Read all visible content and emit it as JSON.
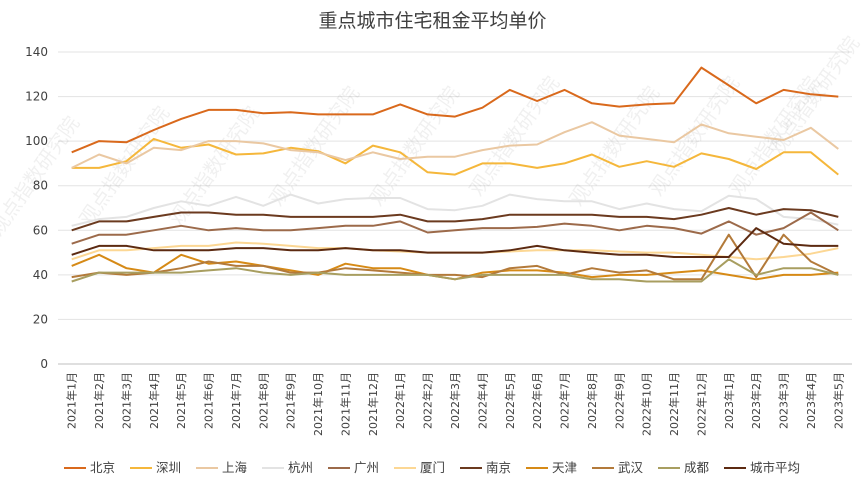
{
  "chart_data": {
    "type": "line",
    "title": "重点城市住宅租金平均单价",
    "xlabel": "",
    "ylabel": "",
    "ylim": [
      0,
      140
    ],
    "yticks": [
      0,
      20,
      40,
      60,
      80,
      100,
      120,
      140
    ],
    "grid": true,
    "legend_position": "bottom",
    "categories": [
      "2021年1月",
      "2021年2月",
      "2021年3月",
      "2021年4月",
      "2021年5月",
      "2021年6月",
      "2021年7月",
      "2021年8月",
      "2021年9月",
      "2021年10月",
      "2021年11月",
      "2021年12月",
      "2022年1月",
      "2022年2月",
      "2022年3月",
      "2022年4月",
      "2022年5月",
      "2022年6月",
      "2022年7月",
      "2022年8月",
      "2022年9月",
      "2022年10月",
      "2022年11月",
      "2022年12月",
      "2023年1月",
      "2023年2月",
      "2023年3月",
      "2023年4月",
      "2023年5月"
    ],
    "series": [
      {
        "name": "北京",
        "color": "#D9691C",
        "values": [
          95,
          100,
          99.5,
          105,
          110,
          114,
          114,
          112.5,
          113,
          112,
          112,
          112,
          116.5,
          112,
          111,
          115,
          123,
          118,
          123,
          117,
          115.5,
          116.5,
          117,
          133,
          125,
          117,
          123,
          121,
          120
        ]
      },
      {
        "name": "深圳",
        "color": "#F5B73B",
        "values": [
          88,
          88,
          91,
          101,
          97,
          98.5,
          94,
          94.5,
          97,
          95.5,
          90,
          98,
          95,
          86,
          85,
          90,
          90,
          88,
          90,
          94,
          88.5,
          91,
          88.5,
          94.5,
          92,
          87.5,
          95,
          95,
          85
        ]
      },
      {
        "name": "上海",
        "color": "#EAC8A2",
        "values": [
          88,
          94,
          90,
          97,
          96,
          100,
          100,
          99,
          96,
          95,
          91.5,
          95,
          92,
          93,
          93,
          96,
          98,
          98.5,
          104,
          108.5,
          102.5,
          101,
          99.5,
          107.5,
          103.5,
          102,
          100.5,
          106,
          96.5
        ]
      },
      {
        "name": "杭州",
        "color": "#E3E3E3",
        "values": [
          62,
          65,
          66,
          70,
          73,
          71,
          75,
          71,
          76,
          72,
          74,
          74.5,
          74.5,
          69.5,
          69,
          71,
          76,
          74,
          73,
          73,
          69.5,
          72,
          69.5,
          68.5,
          75.5,
          74,
          66,
          65,
          62.5
        ]
      },
      {
        "name": "广州",
        "color": "#9C6A4A",
        "values": [
          54,
          58,
          58,
          60,
          62,
          60,
          61,
          60,
          60,
          61,
          62,
          62,
          64,
          59,
          60,
          61,
          61,
          61.5,
          63,
          62,
          60,
          62,
          61,
          58.5,
          64,
          58,
          61,
          68,
          60
        ]
      },
      {
        "name": "厦门",
        "color": "#FCD794",
        "values": [
          47,
          51,
          51,
          52,
          53,
          53,
          54.5,
          54,
          53,
          52,
          52,
          51,
          50.5,
          50,
          50,
          50,
          50.5,
          51,
          51,
          51,
          50.5,
          50,
          50,
          49,
          48,
          47,
          48,
          49.5,
          52
        ]
      },
      {
        "name": "南京",
        "color": "#6B3A1F",
        "values": [
          60,
          64,
          64,
          66,
          68,
          68,
          67,
          67,
          66,
          66,
          66,
          66,
          67,
          64,
          64,
          65,
          67,
          67,
          67,
          67,
          66,
          66,
          65,
          67,
          70,
          67,
          69.5,
          69,
          66
        ]
      },
      {
        "name": "天津",
        "color": "#D68A16",
        "values": [
          44,
          49,
          43,
          41,
          49,
          45,
          46,
          44,
          42,
          40,
          45,
          43,
          43,
          40,
          38,
          41,
          42,
          42,
          41,
          39,
          40,
          40,
          41,
          42,
          40,
          38,
          40,
          40,
          41
        ]
      },
      {
        "name": "武汉",
        "color": "#B37A3A",
        "values": [
          39,
          41,
          40,
          41,
          43,
          46,
          44,
          44,
          41,
          41,
          43,
          42,
          41,
          40,
          40,
          39,
          43,
          44,
          40,
          43,
          41,
          42,
          38,
          38,
          58,
          39,
          58,
          46,
          40
        ]
      },
      {
        "name": "成都",
        "color": "#A89E60",
        "values": [
          37,
          41,
          41,
          41,
          41,
          42,
          43,
          41,
          40,
          41,
          40,
          40,
          40,
          40,
          38,
          40,
          40,
          40,
          40,
          38,
          38,
          37,
          37,
          37,
          47,
          40,
          43,
          43,
          40
        ]
      },
      {
        "name": "城市平均",
        "color": "#5C2A11",
        "values": [
          49,
          53,
          53,
          51,
          51,
          51,
          52,
          52,
          51,
          51,
          52,
          51,
          51,
          50,
          50,
          50,
          51,
          53,
          51,
          50,
          49,
          49,
          48,
          48,
          48,
          61,
          54,
          53,
          53
        ]
      }
    ]
  },
  "watermarks": [
    "观点指数研究院",
    "观点指数研究院",
    "观点指数研究院",
    "观点指数研究院",
    "观点指数研究院",
    "观点指数研究院",
    "观点指数研究院",
    "观点指数研究院",
    "观点指数研究院",
    "观点指数研究院"
  ]
}
